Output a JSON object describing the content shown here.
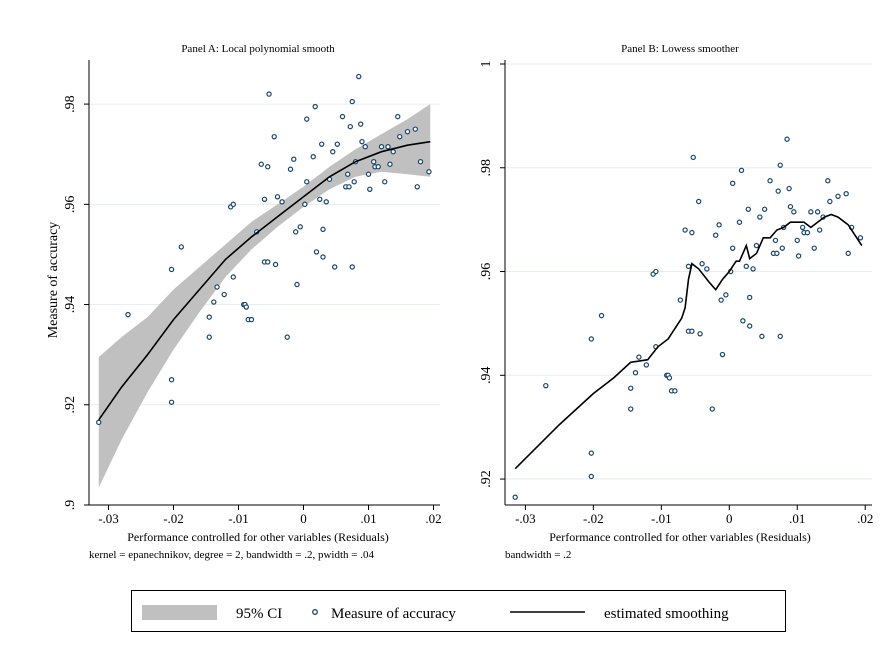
{
  "chart_data": [
    {
      "type": "scatter",
      "title": "Panel A: Local polynomial smooth",
      "xlabel": "Performance controlled for other variables (Residuals)",
      "ylabel": "Measure of accuracy",
      "note": "kernel = epanechnikov, degree = 2, bandwidth = .2, pwidth = .04",
      "xlim": [
        -0.033,
        0.021
      ],
      "ylim": [
        0.9,
        0.988
      ],
      "xticks": [
        -0.03,
        -0.02,
        -0.01,
        0,
        0.01,
        0.02
      ],
      "xticklabels": [
        "-.03",
        "-.02",
        "-.01",
        "0",
        ".01",
        ".02"
      ],
      "yticks": [
        0.9,
        0.92,
        0.94,
        0.96,
        0.98
      ],
      "yticklabels": [
        ".9",
        ".92",
        ".94",
        ".96",
        ".98"
      ],
      "grid": true,
      "series": [
        {
          "name": "Measure of accuracy",
          "kind": "points",
          "points": [
            [
              -0.0315,
              0.9165
            ],
            [
              -0.027,
              0.938
            ],
            [
              -0.0203,
              0.9205
            ],
            [
              -0.0203,
              0.925
            ],
            [
              -0.0203,
              0.947
            ],
            [
              -0.0188,
              0.9515
            ],
            [
              -0.0145,
              0.9335
            ],
            [
              -0.0145,
              0.9375
            ],
            [
              -0.0138,
              0.9405
            ],
            [
              -0.0133,
              0.9435
            ],
            [
              -0.0122,
              0.942
            ],
            [
              -0.0112,
              0.9595
            ],
            [
              -0.0108,
              0.96
            ],
            [
              -0.0108,
              0.9455
            ],
            [
              -0.0092,
              0.94
            ],
            [
              -0.009,
              0.94
            ],
            [
              -0.0088,
              0.9395
            ],
            [
              -0.0085,
              0.937
            ],
            [
              -0.008,
              0.937
            ],
            [
              -0.0072,
              0.9545
            ],
            [
              -0.0065,
              0.968
            ],
            [
              -0.006,
              0.961
            ],
            [
              -0.006,
              0.9485
            ],
            [
              -0.0055,
              0.9485
            ],
            [
              -0.0055,
              0.9675
            ],
            [
              -0.0053,
              0.982
            ],
            [
              -0.0045,
              0.9735
            ],
            [
              -0.0043,
              0.948
            ],
            [
              -0.004,
              0.9615
            ],
            [
              -0.0033,
              0.9605
            ],
            [
              -0.0025,
              0.9335
            ],
            [
              -0.002,
              0.967
            ],
            [
              -0.0015,
              0.969
            ],
            [
              -0.0012,
              0.9545
            ],
            [
              -0.001,
              0.944
            ],
            [
              -0.0005,
              0.9555
            ],
            [
              0.0002,
              0.96
            ],
            [
              0.0005,
              0.9645
            ],
            [
              0.0005,
              0.977
            ],
            [
              0.0015,
              0.9695
            ],
            [
              0.0018,
              0.9795
            ],
            [
              0.002,
              0.9505
            ],
            [
              0.0025,
              0.961
            ],
            [
              0.0028,
              0.972
            ],
            [
              0.003,
              0.955
            ],
            [
              0.003,
              0.9495
            ],
            [
              0.0035,
              0.9605
            ],
            [
              0.004,
              0.965
            ],
            [
              0.0045,
              0.9705
            ],
            [
              0.0048,
              0.9475
            ],
            [
              0.0052,
              0.972
            ],
            [
              0.006,
              0.9775
            ],
            [
              0.0065,
              0.9635
            ],
            [
              0.0068,
              0.966
            ],
            [
              0.007,
              0.9635
            ],
            [
              0.0072,
              0.9755
            ],
            [
              0.0075,
              0.9475
            ],
            [
              0.0075,
              0.9805
            ],
            [
              0.0078,
              0.9645
            ],
            [
              0.008,
              0.9685
            ],
            [
              0.0085,
              0.9855
            ],
            [
              0.0088,
              0.976
            ],
            [
              0.009,
              0.9725
            ],
            [
              0.0095,
              0.9715
            ],
            [
              0.01,
              0.966
            ],
            [
              0.0102,
              0.963
            ],
            [
              0.0108,
              0.9685
            ],
            [
              0.011,
              0.9675
            ],
            [
              0.0115,
              0.9675
            ],
            [
              0.012,
              0.9715
            ],
            [
              0.0125,
              0.9645
            ],
            [
              0.013,
              0.9715
            ],
            [
              0.0133,
              0.968
            ],
            [
              0.0138,
              0.9705
            ],
            [
              0.0145,
              0.9775
            ],
            [
              0.0148,
              0.9735
            ],
            [
              0.016,
              0.9745
            ],
            [
              0.0172,
              0.975
            ],
            [
              0.0175,
              0.9635
            ],
            [
              0.018,
              0.9685
            ],
            [
              0.0193,
              0.9665
            ]
          ]
        },
        {
          "name": "estimated smoothing",
          "kind": "line",
          "x": [
            -0.0315,
            -0.028,
            -0.024,
            -0.02,
            -0.016,
            -0.012,
            -0.008,
            -0.004,
            0,
            0.004,
            0.008,
            0.012,
            0.016,
            0.0195
          ],
          "y": [
            0.917,
            0.9235,
            0.93,
            0.937,
            0.943,
            0.949,
            0.9535,
            0.9575,
            0.9615,
            0.9655,
            0.9685,
            0.9705,
            0.9718,
            0.9725
          ],
          "ci_lower": [
            0.9035,
            0.913,
            0.9225,
            0.931,
            0.9385,
            0.9455,
            0.951,
            0.9555,
            0.9595,
            0.963,
            0.9655,
            0.9665,
            0.966,
            0.9655
          ],
          "ci_upper": [
            0.9295,
            0.9335,
            0.9375,
            0.943,
            0.9475,
            0.952,
            0.9565,
            0.96,
            0.9635,
            0.9675,
            0.971,
            0.974,
            0.977,
            0.98
          ]
        }
      ]
    },
    {
      "type": "scatter",
      "title": "Panel B: Lowess smoother",
      "xlabel": "Performance controlled for other variables (Residuals)",
      "ylabel": "",
      "note": "bandwidth = .2",
      "xlim": [
        -0.033,
        0.021
      ],
      "ylim": [
        0.915,
        1.0
      ],
      "xticks": [
        -0.03,
        -0.02,
        -0.01,
        0,
        0.01,
        0.02
      ],
      "xticklabels": [
        "-.03",
        "-.02",
        "-.01",
        "0",
        ".01",
        ".02"
      ],
      "yticks": [
        0.92,
        0.94,
        0.96,
        0.98,
        1.0
      ],
      "yticklabels": [
        ".92",
        ".94",
        ".96",
        ".98",
        "1"
      ],
      "grid": true,
      "series": [
        {
          "name": "Measure of accuracy",
          "kind": "points",
          "same_points_as_panel_a": true
        },
        {
          "name": "estimated smoothing",
          "kind": "line",
          "x": [
            -0.0315,
            -0.025,
            -0.02,
            -0.017,
            -0.0145,
            -0.012,
            -0.0105,
            -0.009,
            -0.008,
            -0.007,
            -0.0065,
            -0.006,
            -0.0055,
            -0.0045,
            -0.003,
            -0.002,
            -0.001,
            0,
            0.001,
            0.0015,
            0.002,
            0.0025,
            0.003,
            0.0035,
            0.004,
            0.005,
            0.006,
            0.007,
            0.008,
            0.009,
            0.01,
            0.011,
            0.012,
            0.013,
            0.014,
            0.015,
            0.016,
            0.0175,
            0.0195
          ],
          "y": [
            0.922,
            0.9305,
            0.9365,
            0.9395,
            0.9425,
            0.943,
            0.9455,
            0.947,
            0.949,
            0.951,
            0.953,
            0.9585,
            0.9615,
            0.9605,
            0.958,
            0.9565,
            0.9585,
            0.96,
            0.962,
            0.962,
            0.9635,
            0.965,
            0.9625,
            0.963,
            0.9635,
            0.9665,
            0.9665,
            0.968,
            0.9685,
            0.9695,
            0.9695,
            0.9695,
            0.9685,
            0.9695,
            0.9705,
            0.971,
            0.9705,
            0.969,
            0.965
          ]
        }
      ]
    }
  ],
  "legend": {
    "items": [
      {
        "label": "95% CI",
        "kind": "band",
        "color": "#c0c0c0"
      },
      {
        "label": "Measure of accuracy",
        "kind": "marker",
        "color": "#1a476f"
      },
      {
        "label": "estimated smoothing",
        "kind": "line",
        "color": "#000000"
      }
    ]
  },
  "colors": {
    "grid": "#e6eef3",
    "marker": "#1a476f",
    "ci": "#c0c0c0",
    "line": "#000000"
  }
}
